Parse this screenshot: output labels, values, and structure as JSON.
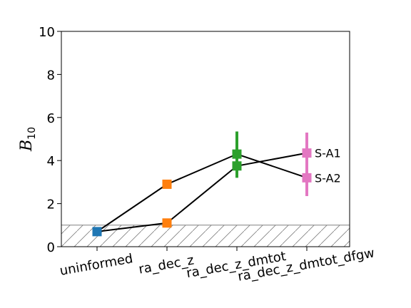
{
  "chart_data": {
    "type": "scatter",
    "title": "",
    "xlabel": "",
    "ylabel": "B10",
    "ylabel_main": "B",
    "ylabel_sub": "10",
    "ylim": [
      0,
      10
    ],
    "yticks": [
      0,
      2,
      4,
      6,
      8,
      10
    ],
    "categories": [
      "uninformed",
      "ra_dec_z",
      "ra_dec_z_dmtot",
      "ra_dec_z_dmtot_dfgw"
    ],
    "threshold": 1,
    "threshold_hatched": true,
    "grid": false,
    "legend": "none",
    "connectors": [
      {
        "points": [
          [
            0,
            0.7
          ],
          [
            1,
            2.9
          ],
          [
            2,
            4.3
          ],
          [
            3,
            3.2
          ]
        ]
      },
      {
        "points": [
          [
            0,
            0.7
          ],
          [
            1,
            1.1
          ],
          [
            2,
            3.75
          ],
          [
            3,
            4.35
          ]
        ]
      }
    ],
    "points": [
      {
        "category": "uninformed",
        "value": 0.7,
        "err_low": 0.7,
        "err_high": 0.7,
        "color": "#1f77b4"
      },
      {
        "category": "ra_dec_z",
        "value": 2.9,
        "err_low": 2.9,
        "err_high": 2.9,
        "color": "#ff7f0e"
      },
      {
        "category": "ra_dec_z",
        "value": 1.1,
        "err_low": 1.1,
        "err_high": 1.1,
        "color": "#ff7f0e"
      },
      {
        "category": "ra_dec_z_dmtot",
        "value": 4.3,
        "err_low": 3.6,
        "err_high": 5.35,
        "color": "#2ca02c"
      },
      {
        "category": "ra_dec_z_dmtot",
        "value": 3.75,
        "err_low": 3.2,
        "err_high": 4.2,
        "color": "#2ca02c"
      },
      {
        "category": "ra_dec_z_dmtot_dfgw",
        "value": 4.35,
        "err_low": 3.2,
        "err_high": 5.3,
        "color": "#e377c2",
        "label": "S-A1"
      },
      {
        "category": "ra_dec_z_dmtot_dfgw",
        "value": 3.2,
        "err_low": 2.35,
        "err_high": 4.3,
        "color": "#e377c2",
        "label": "S-A2"
      }
    ]
  }
}
